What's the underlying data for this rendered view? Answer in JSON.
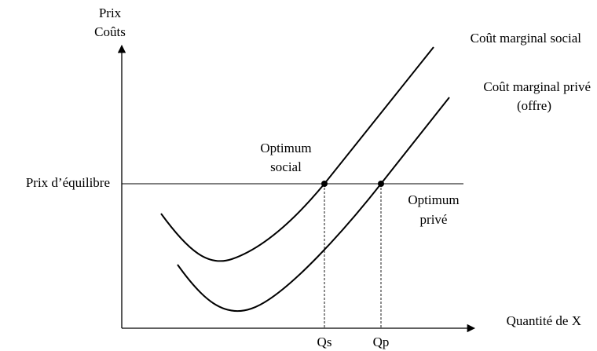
{
  "axes": {
    "y_label_1": "Prix",
    "y_label_2": "Coûts",
    "x_label": "Quantité de X"
  },
  "curves": [
    {
      "label": "Coût marginal social"
    },
    {
      "label_1": "Coût marginal privé",
      "label_2": "(offre)"
    }
  ],
  "equilibrium_price": "Prix d’équilibre",
  "points": [
    {
      "label_1": "Optimum",
      "label_2": "social",
      "quantity": "Qs"
    },
    {
      "label_1": "Optimum",
      "label_2": "privé",
      "quantity": "Qp"
    }
  ]
}
